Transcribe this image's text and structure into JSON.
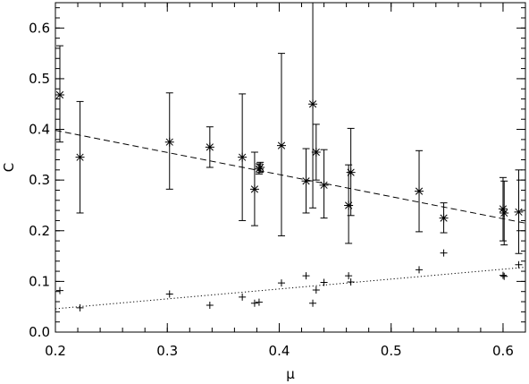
{
  "chart_data": {
    "type": "scatter",
    "title": "",
    "xlabel": "μ",
    "ylabel": "C",
    "xlim": [
      0.2,
      0.62
    ],
    "ylim": [
      0.0,
      0.65
    ],
    "x_ticks": [
      "0.2",
      "0.3",
      "0.4",
      "0.5",
      "0.6"
    ],
    "x_tick_values": [
      0.2,
      0.3,
      0.4,
      0.5,
      0.6
    ],
    "y_ticks": [
      "0.0",
      "0.1",
      "0.2",
      "0.3",
      "0.4",
      "0.5",
      "0.6"
    ],
    "y_tick_values": [
      0.0,
      0.1,
      0.2,
      0.3,
      0.4,
      0.5,
      0.6
    ],
    "grid": false,
    "series": [
      {
        "marker": "asterisk",
        "points": [
          {
            "x": 0.204,
            "y": 0.468,
            "low": 0.375,
            "high": 0.565
          },
          {
            "x": 0.222,
            "y": 0.345,
            "low": 0.235,
            "high": 0.455
          },
          {
            "x": 0.302,
            "y": 0.375,
            "low": 0.282,
            "high": 0.472
          },
          {
            "x": 0.338,
            "y": 0.365,
            "low": 0.325,
            "high": 0.405
          },
          {
            "x": 0.367,
            "y": 0.345,
            "low": 0.22,
            "high": 0.47
          },
          {
            "x": 0.378,
            "y": 0.282,
            "low": 0.21,
            "high": 0.355
          },
          {
            "x": 0.382,
            "y": 0.322,
            "low": 0.312,
            "high": 0.332
          },
          {
            "x": 0.383,
            "y": 0.325,
            "low": 0.315,
            "high": 0.335
          },
          {
            "x": 0.402,
            "y": 0.368,
            "low": 0.19,
            "high": 0.55
          },
          {
            "x": 0.424,
            "y": 0.298,
            "low": 0.235,
            "high": 0.362
          },
          {
            "x": 0.43,
            "y": 0.45,
            "low": 0.245,
            "high": 0.65
          },
          {
            "x": 0.433,
            "y": 0.355,
            "low": 0.3,
            "high": 0.41
          },
          {
            "x": 0.44,
            "y": 0.29,
            "low": 0.225,
            "high": 0.36
          },
          {
            "x": 0.462,
            "y": 0.25,
            "low": 0.175,
            "high": 0.33
          },
          {
            "x": 0.464,
            "y": 0.315,
            "low": 0.23,
            "high": 0.402
          },
          {
            "x": 0.525,
            "y": 0.278,
            "low": 0.198,
            "high": 0.358
          },
          {
            "x": 0.547,
            "y": 0.225,
            "low": 0.196,
            "high": 0.255
          },
          {
            "x": 0.6,
            "y": 0.243,
            "low": 0.18,
            "high": 0.305
          },
          {
            "x": 0.601,
            "y": 0.235,
            "low": 0.172,
            "high": 0.298
          },
          {
            "x": 0.614,
            "y": 0.237,
            "low": 0.155,
            "high": 0.32
          }
        ]
      },
      {
        "marker": "plus",
        "points": [
          {
            "x": 0.204,
            "y": 0.082
          },
          {
            "x": 0.222,
            "y": 0.048
          },
          {
            "x": 0.302,
            "y": 0.075
          },
          {
            "x": 0.338,
            "y": 0.053
          },
          {
            "x": 0.367,
            "y": 0.069
          },
          {
            "x": 0.378,
            "y": 0.057
          },
          {
            "x": 0.382,
            "y": 0.059
          },
          {
            "x": 0.402,
            "y": 0.097
          },
          {
            "x": 0.424,
            "y": 0.111
          },
          {
            "x": 0.43,
            "y": 0.057
          },
          {
            "x": 0.433,
            "y": 0.083
          },
          {
            "x": 0.44,
            "y": 0.098
          },
          {
            "x": 0.462,
            "y": 0.111
          },
          {
            "x": 0.464,
            "y": 0.099
          },
          {
            "x": 0.525,
            "y": 0.123
          },
          {
            "x": 0.547,
            "y": 0.156
          },
          {
            "x": 0.6,
            "y": 0.112
          },
          {
            "x": 0.601,
            "y": 0.11
          },
          {
            "x": 0.614,
            "y": 0.133
          }
        ]
      }
    ],
    "fit_lines": [
      {
        "style": "dashed",
        "x": [
          0.2,
          0.62
        ],
        "y": [
          0.398,
          0.215
        ]
      },
      {
        "style": "dotted",
        "x": [
          0.2,
          0.62
        ],
        "y": [
          0.046,
          0.128
        ]
      }
    ]
  }
}
